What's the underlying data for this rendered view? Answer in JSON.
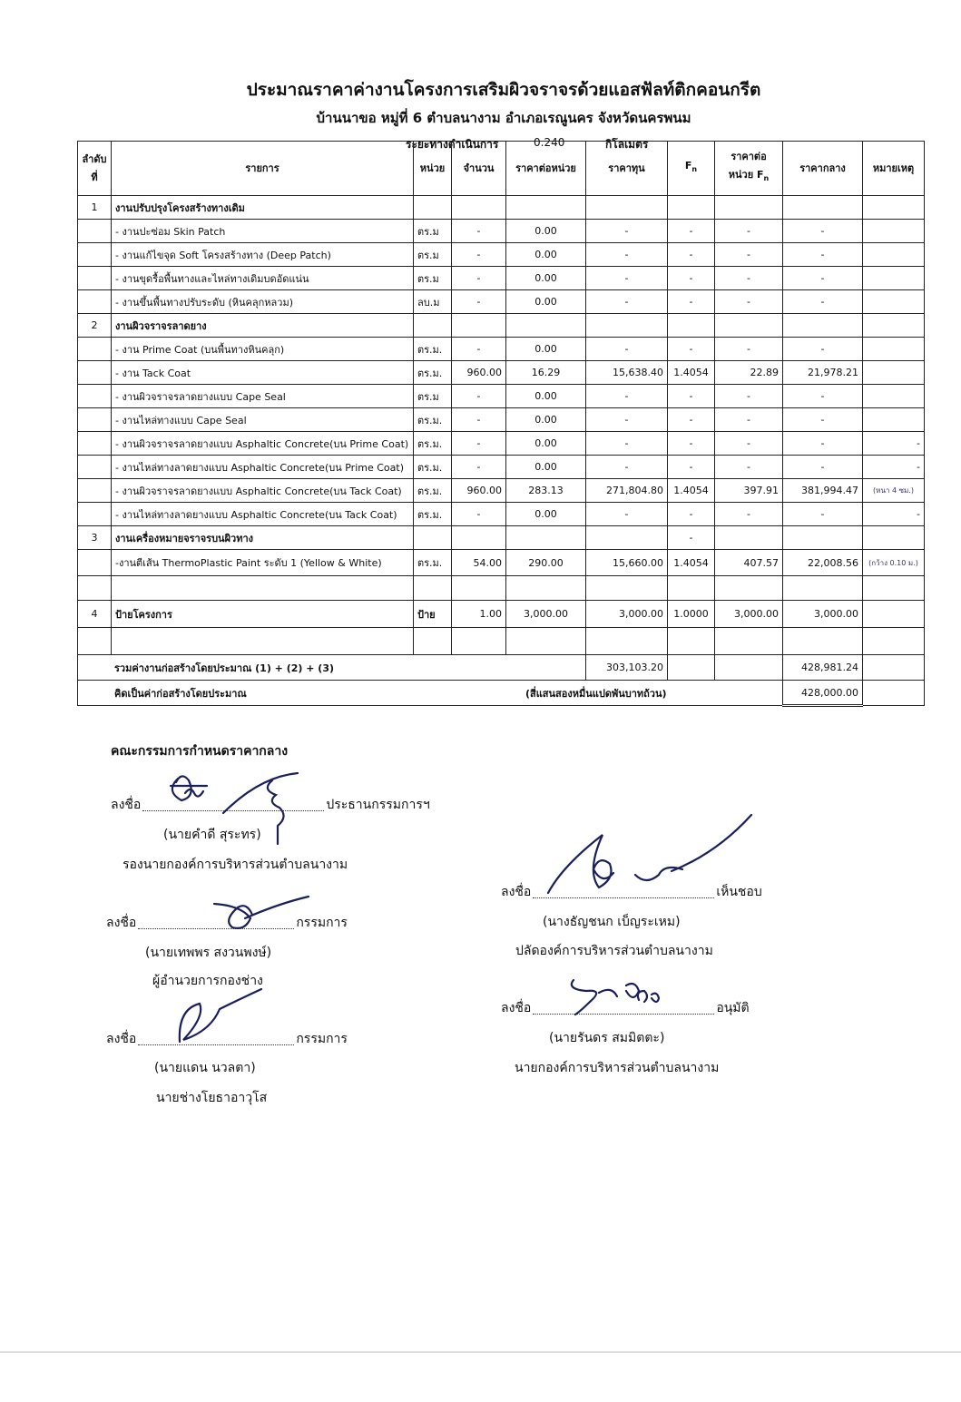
{
  "header": {
    "title": "ประมาณราคาค่างานโครงการเสริมผิวจราจรด้วยแอสฟัลท์ติกคอนกรีต",
    "subtitle": "บ้านนาขอ  หมู่ที่ 6  ตำบลนางาม   อำเภอเรณูนคร  จังหวัดนครพนม",
    "distance": {
      "label": "ระยะทางดำเนินการ",
      "value": "0.240",
      "unit": "กิโลเมตร"
    }
  },
  "table": {
    "header": [
      {
        "text": "ลำดับ\nที่"
      },
      {
        "text": "รายการ"
      },
      {
        "text": "หน่วย"
      },
      {
        "text": "จำนวน"
      },
      {
        "text": "ราคาต่อหน่วย"
      },
      {
        "text": "ราคาทุน"
      },
      {
        "text": "F",
        "sub": "n"
      },
      {
        "text": "ราคาต่อ\nหน่วย F",
        "sub": "n"
      },
      {
        "text": "ราคากลาง"
      },
      {
        "text": "หมายเหตุ"
      }
    ],
    "rows": [
      {
        "no": "1",
        "item": "งานปรับปรุงโครงสร้างทางเดิม"
      },
      {
        "item": "- งานปะซ่อม Skin Patch",
        "unit": "ตร.ม",
        "qty": "-",
        "unit_price": "0.00",
        "cost": "-",
        "f": "-",
        "price_f": "-",
        "mid_price": "-"
      },
      {
        "item": "- งานแก้ไขจุด Soft โครงสร้างทาง (Deep Patch)",
        "unit": "ตร.ม",
        "qty": "-",
        "unit_price": "0.00",
        "cost": "-",
        "f": "-",
        "price_f": "-",
        "mid_price": "-"
      },
      {
        "item": "- งานขุดรื้อพื้นทางและไหล่ทางเดิมบดอัดแน่น",
        "unit": "ตร.ม",
        "qty": "-",
        "unit_price": "0.00",
        "cost": "-",
        "f": "-",
        "price_f": "-",
        "mid_price": "-"
      },
      {
        "item": "- งานขึ้นพื้นทางปรับระดับ (หินคลุกหลวม)",
        "unit": "ลบ.ม",
        "qty": "-",
        "unit_price": "0.00",
        "cost": "-",
        "f": "-",
        "price_f": "-",
        "mid_price": "-"
      },
      {
        "no": "2",
        "item": "งานผิวจราจรลาดยาง"
      },
      {
        "item": "- งาน Prime Coat (บนพื้นทางหินคลุก)",
        "unit": "ตร.ม.",
        "qty": "-",
        "unit_price": "0.00",
        "cost": "-",
        "f": "-",
        "price_f": "-",
        "mid_price": "-"
      },
      {
        "item": "- งาน Tack Coat",
        "unit": "ตร.ม.",
        "qty": "960.00",
        "unit_price": "16.29",
        "cost": "15,638.40",
        "f": "1.4054",
        "price_f": "22.89",
        "mid_price": "21,978.21"
      },
      {
        "item": "- งานผิวจราจรลาดยางแบบ Cape Seal",
        "unit": "ตร.ม",
        "qty": "-",
        "unit_price": "0.00",
        "cost": "-",
        "f": "-",
        "price_f": "-",
        "mid_price": "-"
      },
      {
        "item": "- งานไหล่ทางแบบ Cape Seal",
        "unit": "ตร.ม.",
        "qty": "-",
        "unit_price": "0.00",
        "cost": "-",
        "f": "-",
        "price_f": "-",
        "mid_price": "-"
      },
      {
        "item": "- งานผิวจราจรลาดยางแบบ Asphaltic Concrete(บน Prime Coat)",
        "unit": "ตร.ม.",
        "qty": "-",
        "unit_price": "0.00",
        "cost": "-",
        "f": "-",
        "price_f": "-",
        "mid_price": "-",
        "note": "-"
      },
      {
        "item": "- งานไหล่ทางลาดยางแบบ Asphaltic Concrete(บน Prime Coat)",
        "unit": "ตร.ม.",
        "qty": "-",
        "unit_price": "0.00",
        "cost": "-",
        "f": "-",
        "price_f": "-",
        "mid_price": "-",
        "note": "-"
      },
      {
        "item": "- งานผิวจราจรลาดยางแบบ Asphaltic Concrete(บน Tack Coat)",
        "unit": "ตร.ม.",
        "qty": "960.00",
        "unit_price": "283.13",
        "cost": "271,804.80",
        "f": "1.4054",
        "price_f": "397.91",
        "mid_price": "381,994.47",
        "note": "(หนา 4 ซม.)"
      },
      {
        "item": "- งานไหล่ทางลาดยางแบบ Asphaltic Concrete(บน Tack Coat)",
        "unit": "ตร.ม.",
        "qty": "-",
        "unit_price": "0.00",
        "cost": "-",
        "f": "-",
        "price_f": "-",
        "mid_price": "-",
        "note": "-"
      },
      {
        "no": "3",
        "item": "งานเครื่องหมายจราจรบนผิวทาง",
        "f": "-"
      },
      {
        "item": "-งานตีเส้น ThermoPlastic Paint ระดับ 1 (Yellow & White)",
        "unit": "ตร.ม.",
        "qty": "54.00",
        "unit_price": "290.00",
        "cost": "15,660.00",
        "f": "1.4054",
        "price_f": "407.57",
        "mid_price": "22,008.56",
        "note": "(กว้าง 0.10 ม.)"
      },
      {},
      {
        "no": "4",
        "item": "ป้ายโครงการ",
        "unit": "ป้าย",
        "qty": "1.00",
        "unit_price": "3,000.00",
        "cost": "3,000.00",
        "f": "1.0000",
        "price_f": "3,000.00",
        "mid_price": "3,000.00"
      },
      {}
    ],
    "totals": [
      {
        "label": "รวมค่างานก่อสร้างโดยประมาณ (1) + (2) + (3)",
        "cost": "303,103.20",
        "mid_price": "428,981.24"
      },
      {
        "label": "คิดเป็นค่าก่อสร้างโดยประมาณ",
        "in_words": "(สี่แสนสองหมื่นแปดพันบาทถ้วน)",
        "mid_price": "428,000.00"
      }
    ]
  },
  "signatures": {
    "committee_title": "คณะกรรมการกำหนดราคากลาง",
    "left": [
      {
        "sign": "ลงชื่อ",
        "role": "ประธานกรรมการฯ",
        "name": "(นายคำดี  สุระทร)",
        "position": "รองนายกองค์การบริหารส่วนตำบลนางาม"
      },
      {
        "sign": "ลงชื่อ",
        "role": "กรรมการ",
        "name": "(นายเทพพร  สงวนพงษ์)",
        "position": "ผู้อำนวยการกองช่าง"
      },
      {
        "sign": "ลงชื่อ",
        "role": "กรรมการ",
        "name": "(นายแดน  นวลตา)",
        "position": "นายช่างโยธาอาวุโส"
      }
    ],
    "right": [
      {
        "sign": "ลงชื่อ",
        "role": "เห็นชอบ",
        "name": "(นางธัญชนก  เบ็ญระเหม)",
        "position": "ปลัดองค์การบริหารส่วนตำบลนางาม"
      },
      {
        "sign": "ลงชื่อ",
        "role": "อนุมัติ",
        "name": "(นายรันดร  สมมิตตะ)",
        "position": "นายกองค์การบริหารส่วนตำบลนางาม"
      }
    ]
  }
}
